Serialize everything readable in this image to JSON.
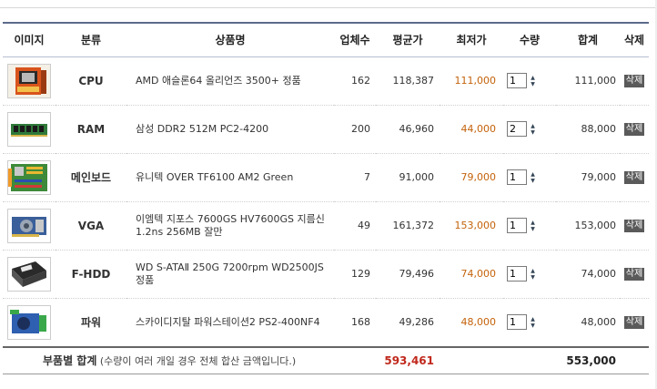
{
  "headers": {
    "image": "이미지",
    "category": "분류",
    "name": "상품명",
    "vendors": "업체수",
    "avg_price": "평균가",
    "low_price": "최저가",
    "qty": "수량",
    "total": "합계",
    "delete": "삭제"
  },
  "items": [
    {
      "category": "CPU",
      "name": "AMD 애슬론64 올리언즈 3500+ 정품",
      "vendors": "162",
      "avg": "118,387",
      "low": "111,000",
      "qty": "1",
      "total": "111,000",
      "del": "삭제",
      "thumb": "cpu-box-icon"
    },
    {
      "category": "RAM",
      "name": "삼성 DDR2 512M PC2-4200",
      "vendors": "200",
      "avg": "46,960",
      "low": "44,000",
      "qty": "2",
      "total": "88,000",
      "del": "삭제",
      "thumb": "ram-stick-icon"
    },
    {
      "category": "메인보드",
      "name": "유니텍 OVER TF6100 AM2 Green",
      "vendors": "7",
      "avg": "91,000",
      "low": "79,000",
      "qty": "1",
      "total": "79,000",
      "del": "삭제",
      "thumb": "motherboard-icon"
    },
    {
      "category": "VGA",
      "name": "이엠텍 지포스 7600GS HV7600GS 지름신 1.2ns 256MB 잘만",
      "vendors": "49",
      "avg": "161,372",
      "low": "153,000",
      "qty": "1",
      "total": "153,000",
      "del": "삭제",
      "thumb": "graphics-card-icon"
    },
    {
      "category": "F-HDD",
      "name": "WD S-ATAⅡ 250G 7200rpm WD2500JS 정품",
      "vendors": "129",
      "avg": "79,496",
      "low": "74,000",
      "qty": "1",
      "total": "74,000",
      "del": "삭제",
      "thumb": "hard-drive-icon"
    },
    {
      "category": "파워",
      "name": "스카이디지탈 파워스테이션2 PS2-400NF4",
      "vendors": "168",
      "avg": "49,286",
      "low": "48,000",
      "qty": "1",
      "total": "48,000",
      "del": "삭제",
      "thumb": "power-supply-icon"
    }
  ],
  "summary": {
    "label": "부품별 합계",
    "note": "(수량이 여러 개일 경우 전체 합산 금액입니다.)",
    "avg_total": "593,461",
    "grand_total": "553,000"
  },
  "colors": {
    "low_price": "#c4620a",
    "avg_total": "#c0281c",
    "header_rule": "#5c6b8a"
  }
}
